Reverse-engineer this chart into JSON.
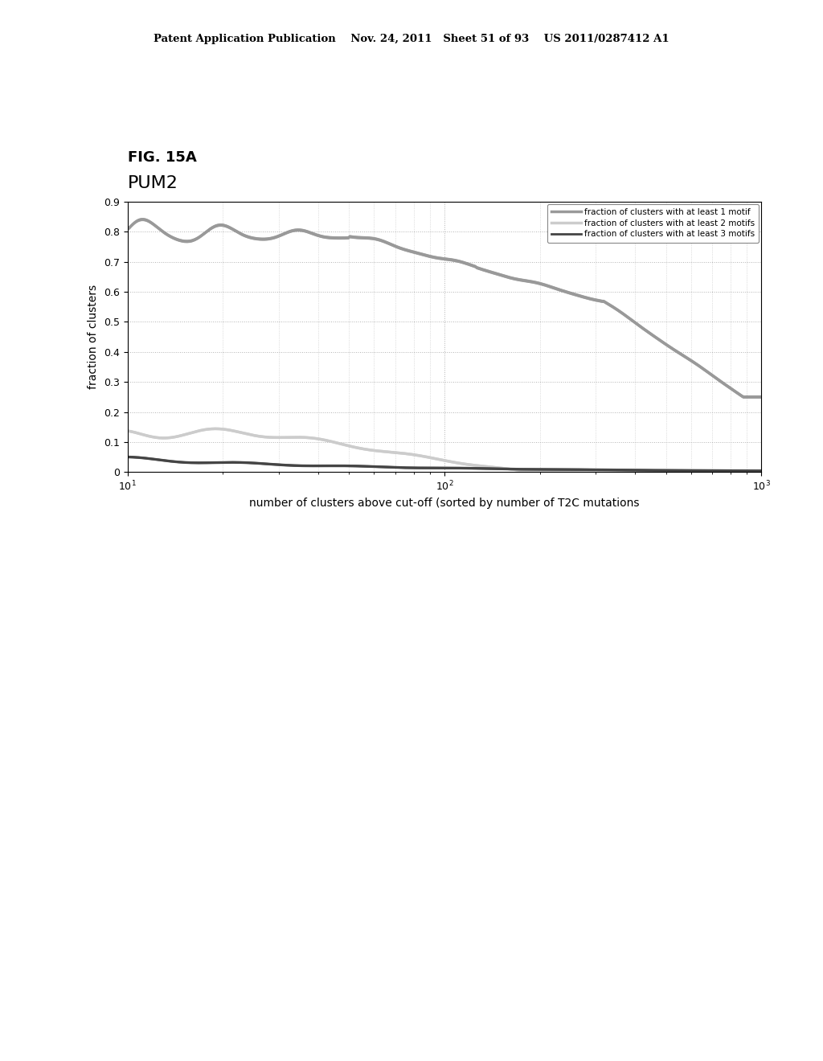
{
  "fig_label": "FIG. 15A",
  "title": "PUM2",
  "xlabel": "number of clusters above cut-off (sorted by number of T2C mutations",
  "ylabel": "fraction of clusters",
  "patent_header": "Patent Application Publication    Nov. 24, 2011   Sheet 51 of 93    US 2011/0287412 A1",
  "legend": [
    "fraction of clusters with at least 1 motif",
    "fraction of clusters with at least 2 motifs",
    "fraction of clusters with at least 3 motifs"
  ],
  "line_colors": [
    "#999999",
    "#cccccc",
    "#444444"
  ],
  "ylim": [
    0,
    0.9
  ],
  "xlim_log": [
    10,
    1000
  ],
  "background_color": "#ffffff",
  "grid_color": "#aaaaaa",
  "grid_style": "dotted"
}
